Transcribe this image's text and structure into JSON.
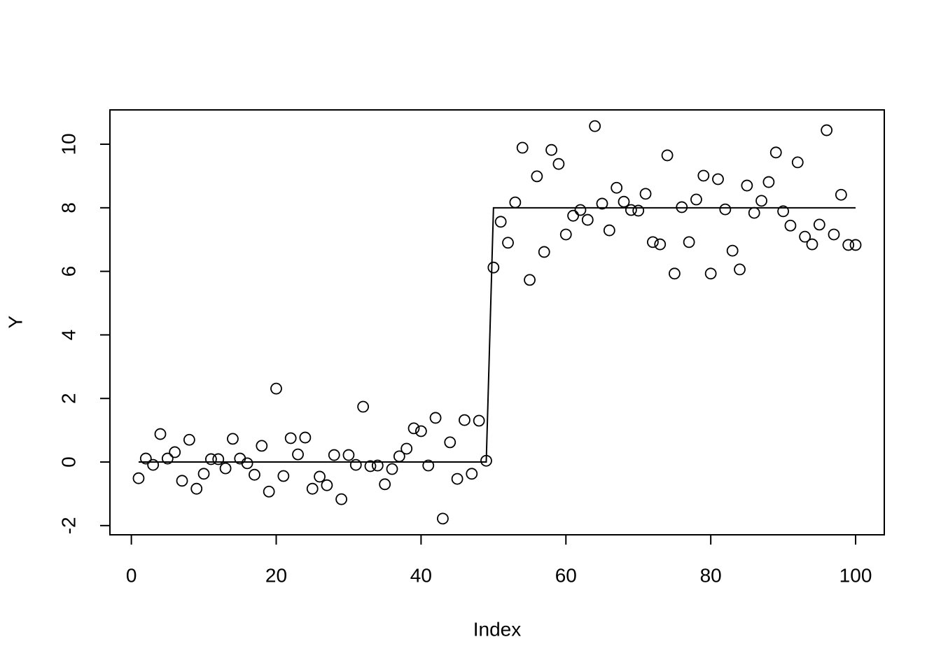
{
  "chart_data": {
    "type": "scatter",
    "x_label": "Index",
    "y_label": "Y",
    "x": [
      1,
      2,
      3,
      4,
      5,
      6,
      7,
      8,
      9,
      10,
      11,
      12,
      13,
      14,
      15,
      16,
      17,
      18,
      19,
      20,
      21,
      22,
      23,
      24,
      25,
      26,
      27,
      28,
      29,
      30,
      31,
      32,
      33,
      34,
      35,
      36,
      37,
      38,
      39,
      40,
      41,
      42,
      43,
      44,
      45,
      46,
      47,
      48,
      49,
      50,
      51,
      52,
      53,
      54,
      55,
      56,
      57,
      58,
      59,
      60,
      61,
      62,
      63,
      64,
      65,
      66,
      67,
      68,
      69,
      70,
      71,
      72,
      73,
      74,
      75,
      76,
      77,
      78,
      79,
      80,
      81,
      82,
      83,
      84,
      85,
      86,
      87,
      88,
      89,
      90,
      91,
      92,
      93,
      94,
      95,
      96,
      97,
      98,
      99,
      100
    ],
    "series": [
      {
        "style": "points",
        "color": "#000000",
        "values": [
          -0.51,
          0.11,
          -0.09,
          0.88,
          0.11,
          0.31,
          -0.59,
          0.7,
          -0.84,
          -0.37,
          0.09,
          0.09,
          -0.2,
          0.73,
          0.11,
          -0.04,
          -0.4,
          0.51,
          -0.93,
          2.31,
          -0.44,
          0.75,
          0.24,
          0.77,
          -0.84,
          -0.46,
          -0.73,
          0.22,
          -1.17,
          0.22,
          -0.09,
          1.74,
          -0.13,
          -0.11,
          -0.7,
          -0.22,
          0.18,
          0.42,
          1.06,
          0.97,
          -0.11,
          1.39,
          -1.78,
          0.62,
          -0.53,
          1.32,
          -0.37,
          1.3,
          0.04,
          6.12,
          7.56,
          6.9,
          8.17,
          9.89,
          5.73,
          8.99,
          6.61,
          9.82,
          9.38,
          7.16,
          7.75,
          7.93,
          7.62,
          10.57,
          8.13,
          7.29,
          8.63,
          8.19,
          7.93,
          7.91,
          8.44,
          6.92,
          6.85,
          9.65,
          5.93,
          8.02,
          6.92,
          8.26,
          9.01,
          5.93,
          8.9,
          7.95,
          6.65,
          6.06,
          8.7,
          7.84,
          8.22,
          8.81,
          9.74,
          7.89,
          7.44,
          9.43,
          7.09,
          6.85,
          7.47,
          10.44,
          7.16,
          8.41,
          6.83,
          6.83
        ]
      },
      {
        "style": "line",
        "color": "#000000",
        "values": [
          0,
          0,
          0,
          0,
          0,
          0,
          0,
          0,
          0,
          0,
          0,
          0,
          0,
          0,
          0,
          0,
          0,
          0,
          0,
          0,
          0,
          0,
          0,
          0,
          0,
          0,
          0,
          0,
          0,
          0,
          0,
          0,
          0,
          0,
          0,
          0,
          0,
          0,
          0,
          0,
          0,
          0,
          0,
          0,
          0,
          0,
          0,
          0,
          0,
          8,
          8,
          8,
          8,
          8,
          8,
          8,
          8,
          8,
          8,
          8,
          8,
          8,
          8,
          8,
          8,
          8,
          8,
          8,
          8,
          8,
          8,
          8,
          8,
          8,
          8,
          8,
          8,
          8,
          8,
          8,
          8,
          8,
          8,
          8,
          8,
          8,
          8,
          8,
          8,
          8,
          8,
          8,
          8,
          8,
          8,
          8,
          8,
          8,
          8,
          8
        ]
      }
    ],
    "xlim": [
      -2.96,
      103.96
    ],
    "ylim": [
      -2.29,
      11.08
    ],
    "xticks": [
      0,
      20,
      40,
      60,
      80,
      100
    ],
    "yticks": [
      -2,
      0,
      2,
      4,
      6,
      8,
      10
    ]
  }
}
